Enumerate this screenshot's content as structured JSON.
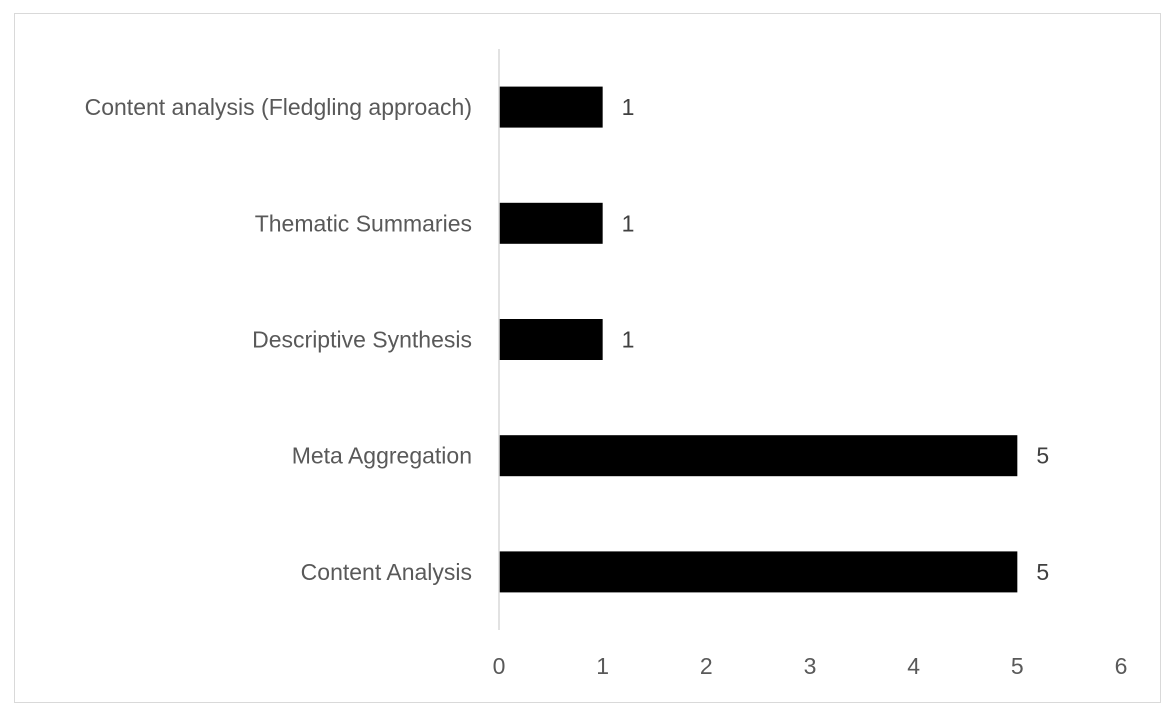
{
  "chart_data": {
    "type": "bar",
    "orientation": "horizontal",
    "categories": [
      "Content Analysis",
      "Meta Aggregation",
      "Descriptive Synthesis",
      "Thematic Summaries",
      "Content analysis (Fledgling approach)"
    ],
    "values": [
      5,
      5,
      1,
      1,
      1
    ],
    "data_labels": [
      "5",
      "5",
      "1",
      "1",
      "1"
    ],
    "title": "",
    "xlabel": "",
    "ylabel": "",
    "xlim": [
      0,
      6
    ],
    "x_ticks": [
      "0",
      "1",
      "2",
      "3",
      "4",
      "5",
      "6"
    ],
    "grid": false,
    "legend": "none",
    "colors": {
      "bar": "#000000",
      "axis": "#d9d9d9",
      "text": "#595959",
      "frame": "#d9d9d9"
    }
  }
}
